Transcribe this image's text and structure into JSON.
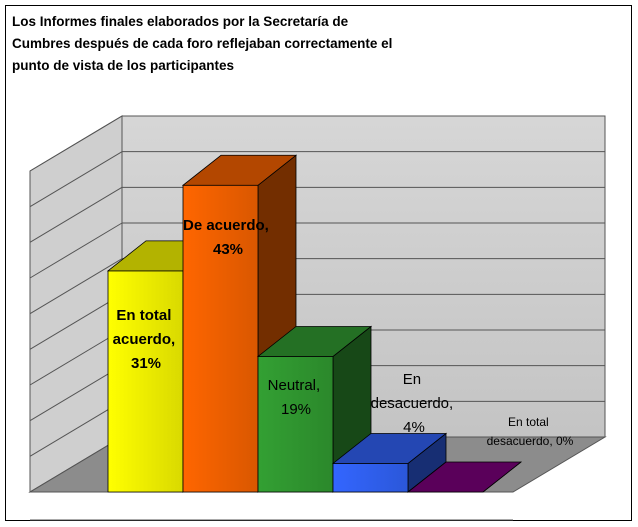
{
  "chart_data": {
    "type": "bar3d",
    "title": "Los Informes finales elaborados por la Secretaría de Cumbres después de cada foro reflejaban correctamente el punto de vista de los participantes",
    "values": [
      31,
      43,
      19,
      4,
      0
    ],
    "value_labels": [
      "En total acuerdo, 31%",
      "De acuerdo, 43%",
      "Neutral, 19%",
      "En desacuerdo, 4%",
      "En total desacuerdo, 0%"
    ],
    "colors": [
      "#ffff00",
      "#ff6600",
      "#33a033",
      "#3366ff",
      "#800080"
    ],
    "ylim": [
      0,
      45
    ],
    "yticks": [
      0,
      5,
      10,
      15,
      20,
      25,
      30,
      35,
      40,
      45
    ],
    "grid": true
  }
}
